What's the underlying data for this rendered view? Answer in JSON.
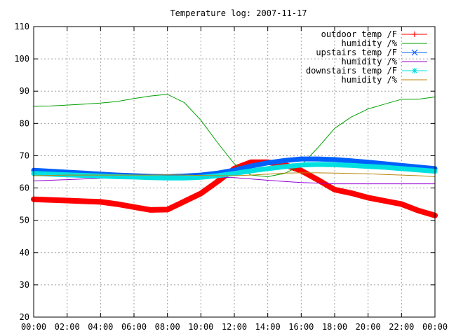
{
  "chart_data": {
    "type": "line",
    "title": "Temperature log: 2007-11-17",
    "xlabel": "",
    "ylabel": "",
    "xlim": [
      "00:00",
      "24:00"
    ],
    "ylim": [
      20,
      110
    ],
    "x_ticks": [
      "00:00",
      "02:00",
      "04:00",
      "06:00",
      "08:00",
      "10:00",
      "12:00",
      "14:00",
      "16:00",
      "18:00",
      "20:00",
      "22:00",
      "00:00"
    ],
    "y_ticks": [
      20,
      30,
      40,
      50,
      60,
      70,
      80,
      90,
      100,
      110
    ],
    "grid": true,
    "legend_position": "top-right",
    "x_hours": [
      0,
      1,
      2,
      3,
      4,
      5,
      6,
      7,
      8,
      9,
      10,
      11,
      12,
      13,
      14,
      15,
      16,
      17,
      18,
      19,
      20,
      21,
      22,
      23,
      24
    ],
    "series": [
      {
        "name": "outdoor temp /F",
        "color": "#ff0000",
        "marker": "plus",
        "values": [
          56.5,
          56.3,
          56.1,
          55.9,
          55.7,
          55.0,
          54.1,
          53.2,
          53.3,
          55.8,
          58.3,
          62.0,
          66.0,
          68.0,
          68.0,
          67.2,
          65.4,
          62.5,
          59.5,
          58.4,
          57.0,
          56.0,
          55.0,
          53.0,
          51.5
        ]
      },
      {
        "name": "humidity /%",
        "color": "#00a000",
        "marker": "none",
        "values": [
          85.3,
          85.4,
          85.7,
          86.0,
          86.3,
          86.8,
          87.7,
          88.5,
          89.0,
          86.5,
          81.0,
          74.0,
          67.5,
          64.0,
          63.5,
          64.5,
          67.0,
          72.5,
          78.5,
          82.0,
          84.5,
          86.0,
          87.5,
          87.5,
          88.2
        ]
      },
      {
        "name": "upstairs temp /F",
        "color": "#0060ff",
        "marker": "x",
        "values": [
          65.5,
          65.2,
          64.9,
          64.6,
          64.3,
          64.0,
          63.8,
          63.6,
          63.5,
          63.7,
          64.0,
          64.6,
          65.5,
          66.8,
          67.8,
          68.5,
          69.0,
          69.0,
          68.8,
          68.4,
          68.0,
          67.5,
          67.0,
          66.5,
          66.0
        ]
      },
      {
        "name": "humidity /%",
        "color": "#9400d3",
        "marker": "none",
        "values": [
          62.2,
          62.4,
          62.6,
          62.8,
          63.0,
          63.2,
          63.3,
          63.4,
          63.4,
          63.4,
          63.4,
          63.3,
          63.2,
          62.8,
          62.4,
          62.0,
          61.7,
          61.5,
          61.3,
          61.3,
          61.3,
          61.3,
          61.3,
          61.3,
          61.3
        ]
      },
      {
        "name": "downstairs temp /F",
        "color": "#00e0e0",
        "marker": "star",
        "values": [
          64.5,
          64.3,
          64.1,
          63.9,
          63.7,
          63.5,
          63.4,
          63.2,
          63.1,
          63.1,
          63.3,
          63.8,
          64.5,
          65.3,
          66.0,
          66.6,
          67.1,
          67.3,
          67.2,
          67.0,
          66.7,
          66.4,
          66.0,
          65.6,
          65.2
        ]
      },
      {
        "name": "humidity /%",
        "color": "#b8860b",
        "marker": "none",
        "values": [
          63.8,
          63.9,
          64.0,
          64.0,
          64.0,
          64.0,
          64.0,
          64.0,
          64.1,
          64.0,
          63.9,
          63.8,
          63.8,
          64.0,
          64.3,
          64.6,
          64.7,
          64.7,
          64.6,
          64.5,
          64.4,
          64.2,
          64.0,
          63.8,
          63.5
        ]
      }
    ]
  }
}
